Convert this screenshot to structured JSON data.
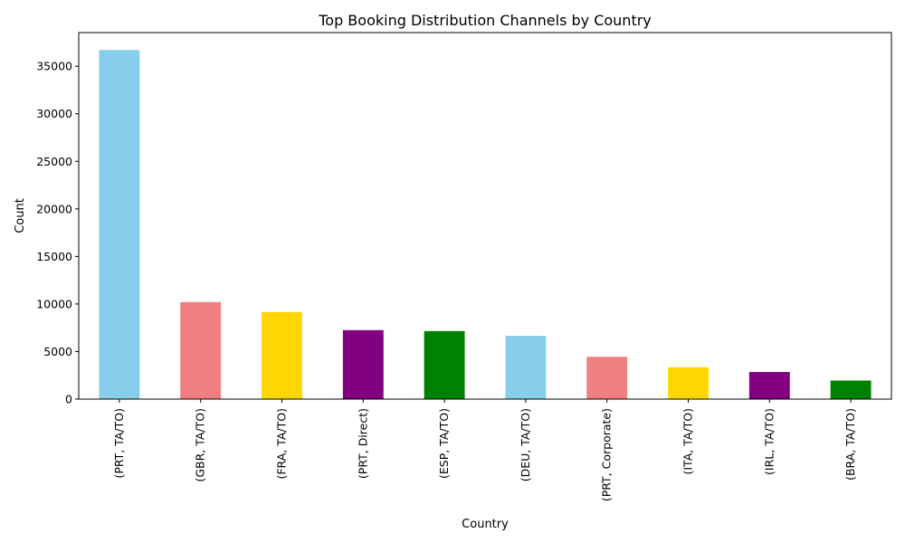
{
  "chart_data": {
    "type": "bar",
    "title": "Top Booking Distribution Channels by Country",
    "xlabel": "Country",
    "ylabel": "Count",
    "categories": [
      "(PRT, TA/TO)",
      "(GBR, TA/TO)",
      "(FRA, TA/TO)",
      "(PRT, Direct)",
      "(ESP, TA/TO)",
      "(DEU, TA/TO)",
      "(PRT, Corporate)",
      "(ITA, TA/TO)",
      "(IRL, TA/TO)",
      "(BRA, TA/TO)"
    ],
    "values": [
      36700,
      10200,
      9150,
      7250,
      7150,
      6650,
      4450,
      3350,
      2850,
      1950
    ],
    "colors": [
      "#87ceeb",
      "#f08080",
      "#ffd700",
      "#800080",
      "#008000",
      "#87ceeb",
      "#f08080",
      "#ffd700",
      "#800080",
      "#008000"
    ],
    "ylim": [
      0,
      38535
    ],
    "yticks": [
      0,
      5000,
      10000,
      15000,
      20000,
      25000,
      30000,
      35000
    ],
    "grid": false,
    "legend": "none"
  }
}
